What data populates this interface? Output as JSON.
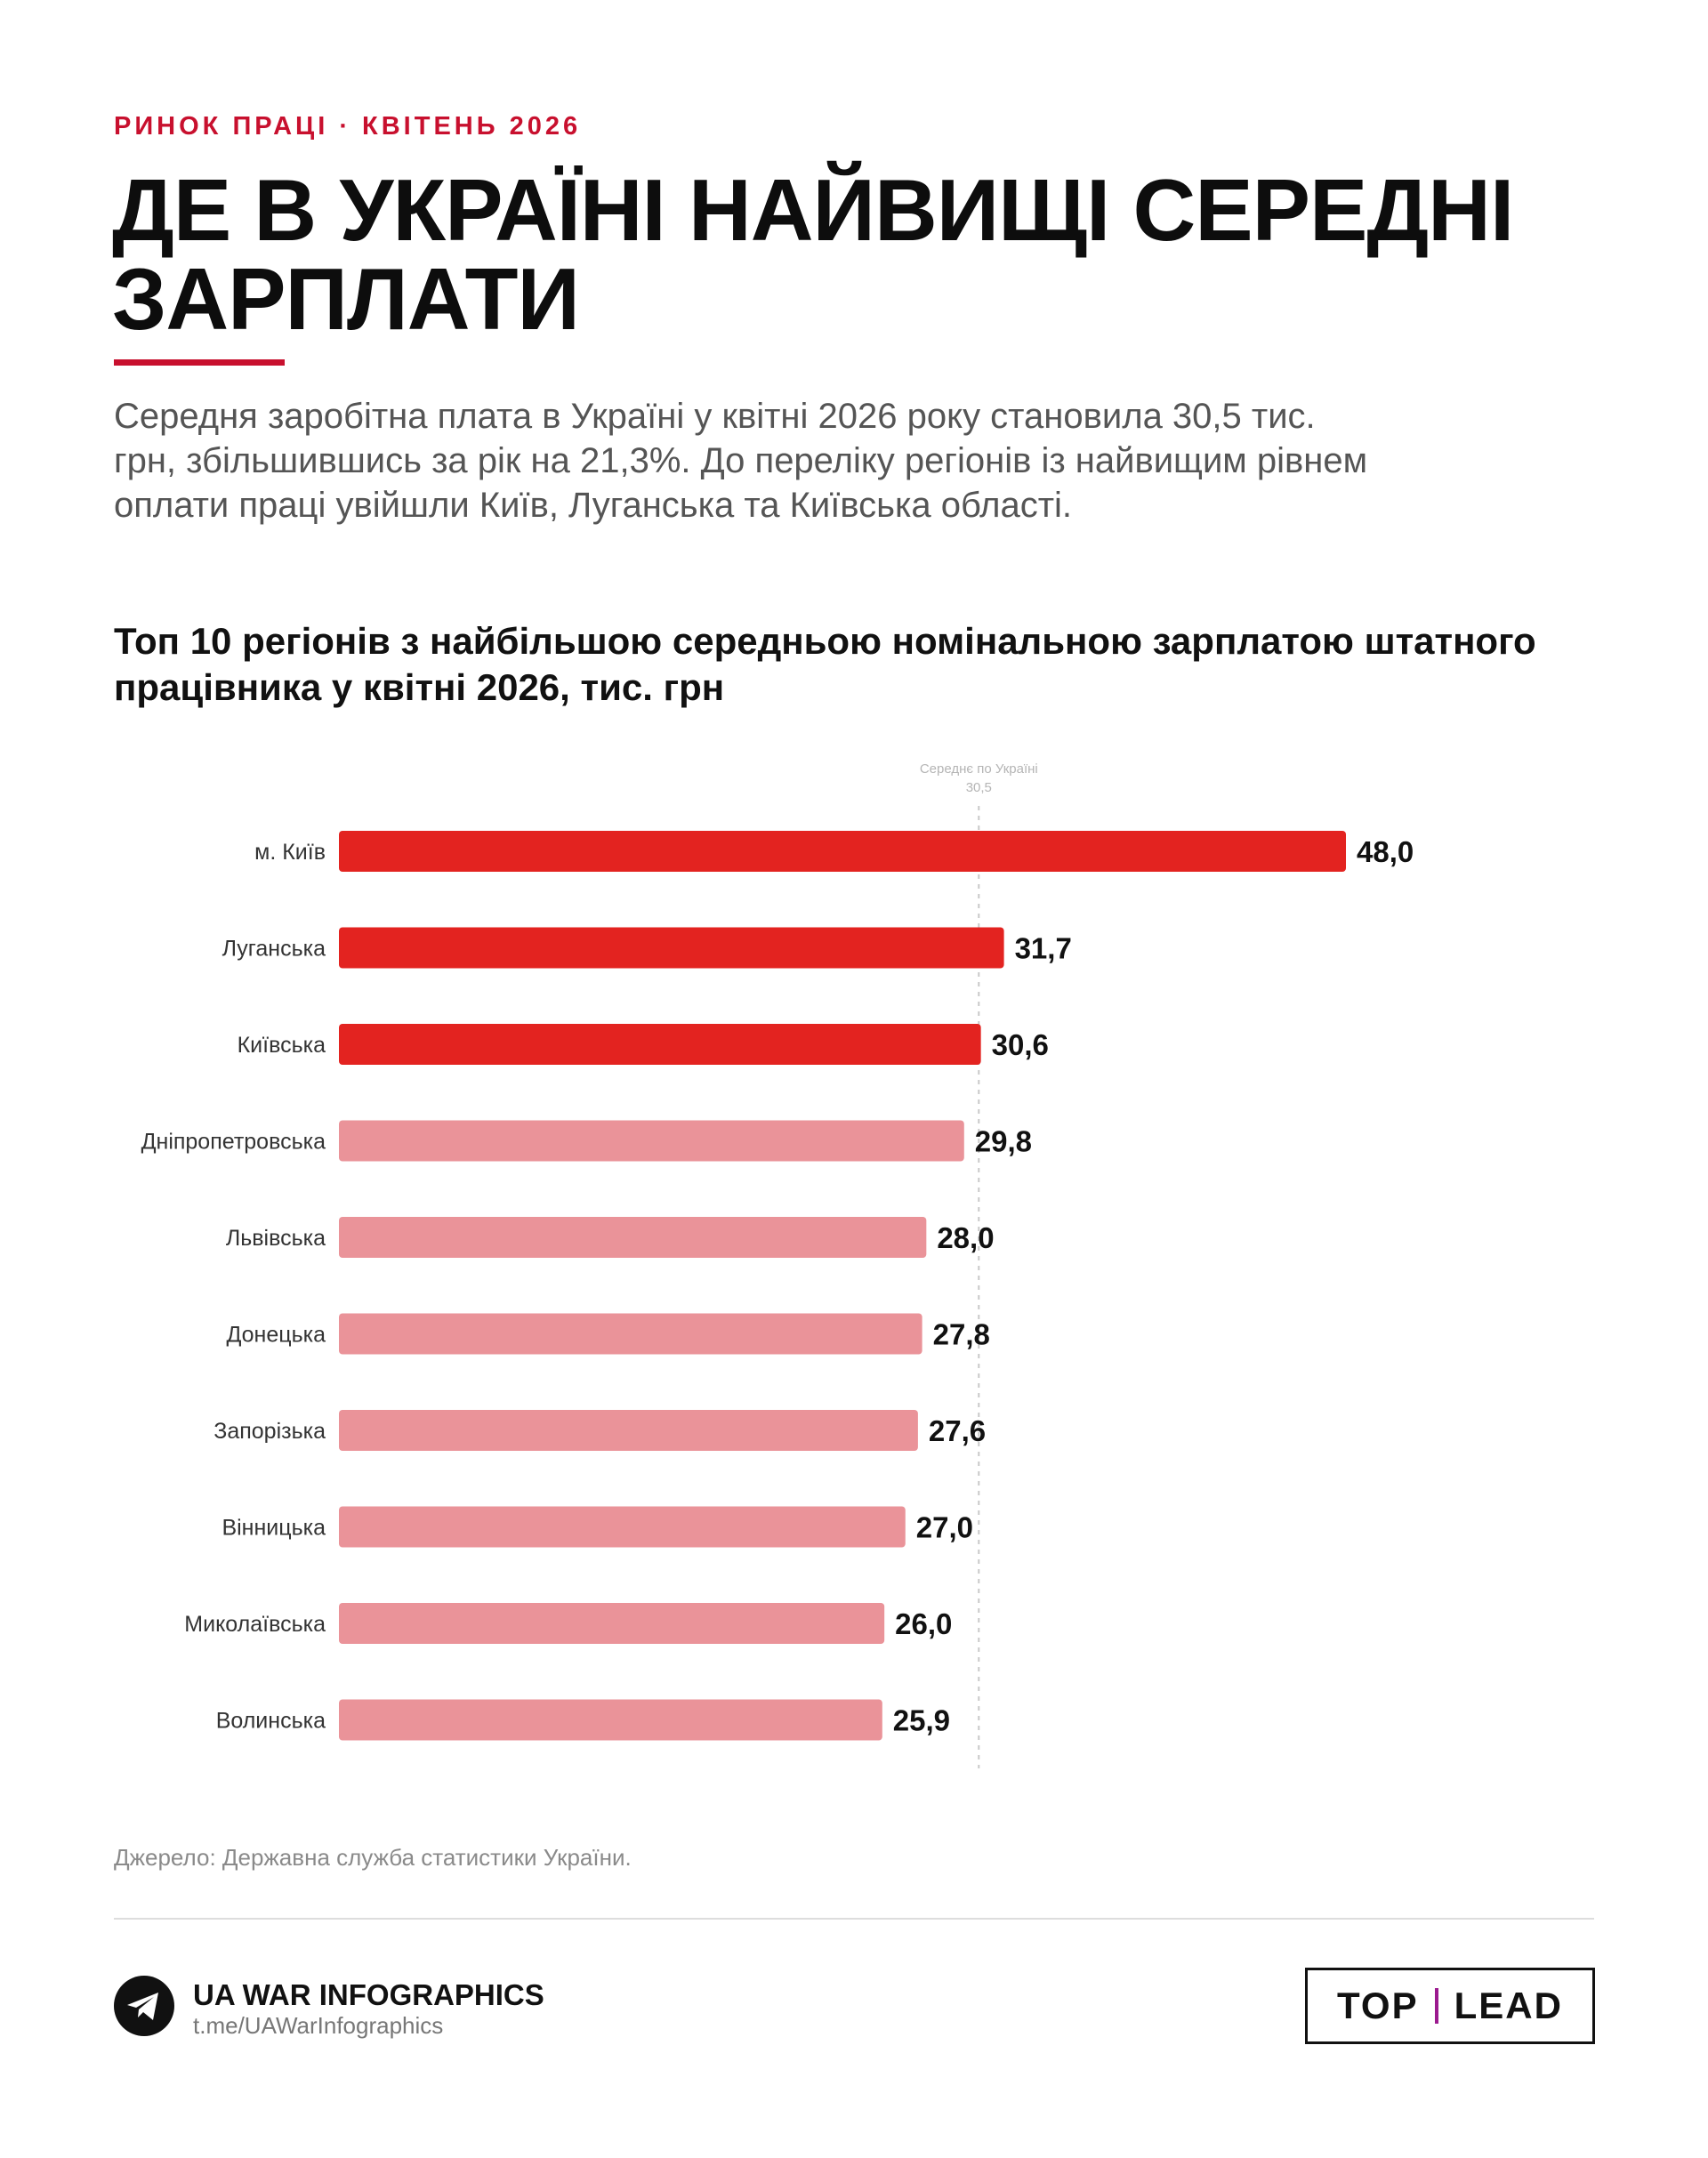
{
  "header": {
    "kicker": "РИНОК ПРАЦІ · КВІТЕНЬ 2026",
    "title": "ДЕ В УКРАЇНІ НАЙВИЩІ СЕРЕДНІ ЗАРПЛАТИ",
    "lead": "Середня заробітна плата в Україні у квітні 2026 року становила 30,5 тис. грн, збільшившись за рік на 21,3%. До переліку регіонів із найвищим рівнем оплати праці увійшли Київ, Луганська та Київська області."
  },
  "chart_data": {
    "type": "bar",
    "orientation": "horizontal",
    "title": "Топ 10 регіонів з найбільшою середньою номінальною зарплатою штатного працівника у квітні 2026, тис. грн",
    "categories": [
      "м. Київ",
      "Луганська",
      "Київська",
      "Дніпропетровська",
      "Львівська",
      "Донецька",
      "Запорізька",
      "Вінницька",
      "Миколаївська",
      "Волинська"
    ],
    "values": [
      48.0,
      31.7,
      30.6,
      29.8,
      28.0,
      27.8,
      27.6,
      27.0,
      26.0,
      25.9
    ],
    "value_labels": [
      "48,0",
      "31,7",
      "30,6",
      "29,8",
      "28,0",
      "27,8",
      "27,6",
      "27,0",
      "26,0",
      "25,9"
    ],
    "highlight_count": 3,
    "colors": {
      "highlight": "#e32320",
      "normal": "#ea9399"
    },
    "reference_line": {
      "value": 30.5,
      "label_line1": "Середнє по Україні",
      "label_line2": "30,5"
    },
    "xlim": [
      0,
      48.0
    ],
    "grid": false,
    "legend": "none"
  },
  "footer": {
    "source": "Джерело: Державна служба статистики України.",
    "brand_name": "UA WAR INFOGRAPHICS",
    "brand_link": "t.me/UAWarInfographics",
    "logo_left": "TOP",
    "logo_right": "LEAD"
  }
}
